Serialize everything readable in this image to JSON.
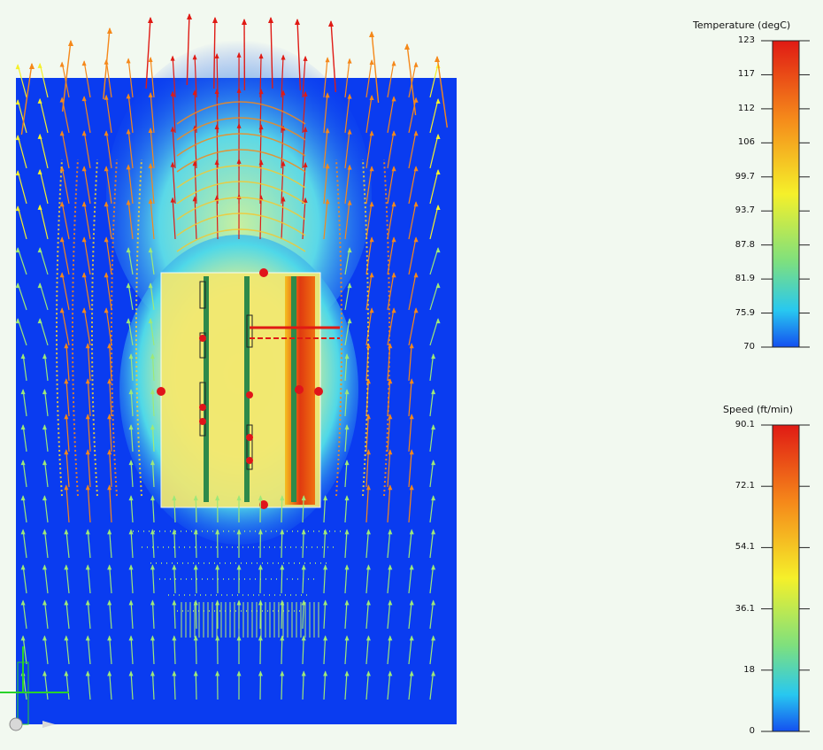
{
  "legends": {
    "temperature": {
      "title": "Temperature (degC)",
      "ticks": [
        "123",
        "117",
        "112",
        "106",
        "99.7",
        "93.7",
        "87.8",
        "81.9",
        "75.9",
        "70"
      ]
    },
    "speed": {
      "title": "Speed (ft/min)",
      "ticks": [
        "90.1",
        "72.1",
        "54.1",
        "36.1",
        "18",
        "0"
      ]
    }
  },
  "colors": {
    "background": "#f2f9f0",
    "domain": "#0a3cf0",
    "hot": "#e0261a",
    "warm": "#f5e14a",
    "cool": "#32d2f0"
  },
  "icons": {
    "axes": "axis-triad-icon",
    "orbit": "orbit-ball-icon"
  }
}
